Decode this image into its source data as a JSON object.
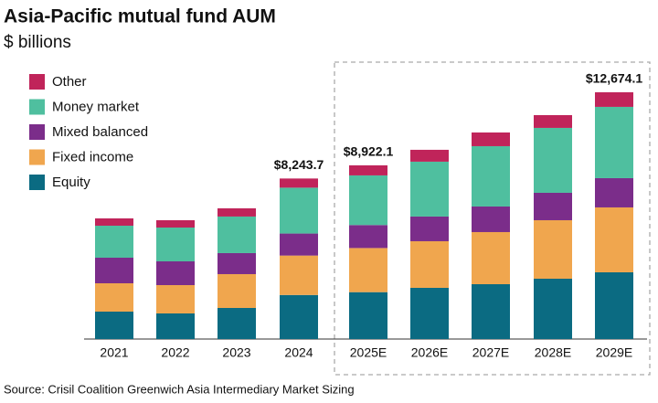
{
  "chart_data": {
    "type": "bar",
    "stacked": true,
    "title": "Asia-Pacific mutual fund AUM",
    "subtitle": "$ billions",
    "source": "Source: Crisil Coalition Greenwich Asia Intermediary Market Sizing",
    "categories": [
      "2021",
      "2022",
      "2023",
      "2024",
      "2025E",
      "2026E",
      "2027E",
      "2028E",
      "2029E"
    ],
    "series": [
      {
        "name": "Equity",
        "color": "#0b6b82",
        "values": [
          1408,
          1314,
          1596,
          2261.1,
          2407.6,
          2629,
          2816,
          3098,
          3426.7
        ]
      },
      {
        "name": "Fixed income",
        "color": "#f0a64e",
        "values": [
          1455,
          1455,
          1737,
          2025.6,
          2265.9,
          2394,
          2676,
          3004,
          3332.8
        ]
      },
      {
        "name": "Mixed balanced",
        "color": "#7b2d8a",
        "values": [
          1314,
          1220,
          1080,
          1130.6,
          1180.2,
          1268,
          1314,
          1408,
          1502.1
        ]
      },
      {
        "name": "Money market",
        "color": "#4fbf9f",
        "values": [
          1643,
          1737,
          1878,
          2355.4,
          2549.2,
          2817,
          3098,
          3333,
          3661.4
        ]
      },
      {
        "name": "Other",
        "color": "#c0245a",
        "values": [
          376,
          376,
          422,
          471.0,
          519.2,
          610,
          704,
          657,
          751.1
        ]
      }
    ],
    "totals": [
      null,
      null,
      null,
      8243.7,
      8922.1,
      null,
      null,
      null,
      12674.1
    ],
    "total_labels": [
      null,
      null,
      null,
      "$8,243.7",
      "$8,922.1",
      null,
      null,
      null,
      "$12,674.1"
    ],
    "ylim": [
      0,
      13000
    ],
    "legend": "top-left"
  }
}
